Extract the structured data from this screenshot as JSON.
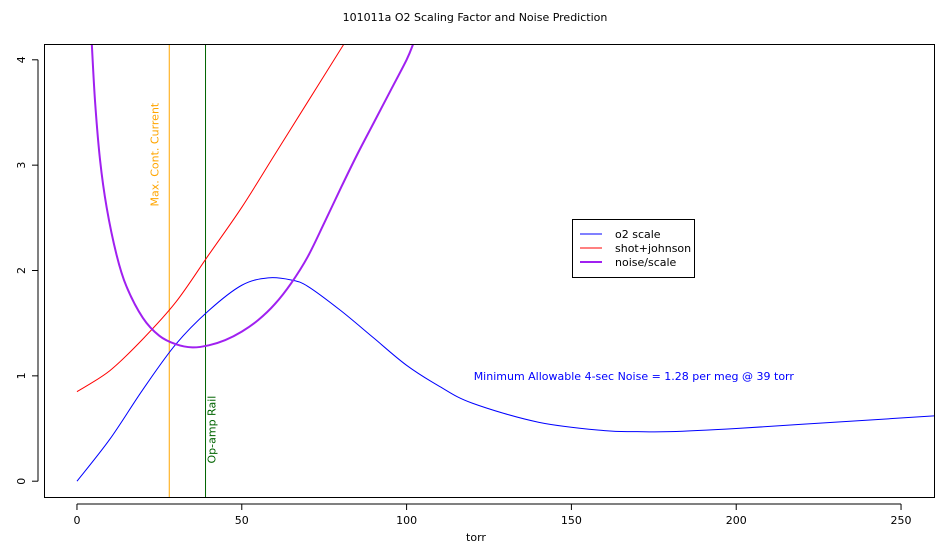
{
  "chart_data": {
    "type": "line",
    "title": "101011a  O2 Scaling Factor and Noise Prediction",
    "xlabel": "torr",
    "ylabel": "",
    "xlim": [
      -10,
      260
    ],
    "ylim": [
      -0.15,
      4.15
    ],
    "x_ticks": [
      0,
      50,
      100,
      150,
      200,
      250
    ],
    "y_ticks": [
      0,
      1,
      2,
      3,
      4
    ],
    "legend_position": "center-right",
    "series": [
      {
        "name": "o2 scale",
        "color": "#0000ff",
        "line_width": 1,
        "x": [
          0,
          10,
          20,
          30,
          40,
          50,
          58,
          65,
          70,
          80,
          90,
          100,
          110,
          120,
          140,
          160,
          170,
          180,
          200,
          220,
          240,
          260
        ],
        "y": [
          0.0,
          0.4,
          0.87,
          1.3,
          1.62,
          1.86,
          1.93,
          1.91,
          1.85,
          1.62,
          1.36,
          1.1,
          0.9,
          0.74,
          0.56,
          0.48,
          0.47,
          0.47,
          0.5,
          0.54,
          0.58,
          0.62
        ]
      },
      {
        "name": "shot+johnson",
        "color": "#ff0000",
        "line_width": 1,
        "x": [
          0,
          10,
          20,
          30,
          40,
          50,
          60,
          70,
          80,
          81
        ],
        "y": [
          0.85,
          1.05,
          1.35,
          1.7,
          2.15,
          2.6,
          3.1,
          3.6,
          4.1,
          4.15
        ]
      },
      {
        "name": "noise/scale",
        "color": "#a020f0",
        "line_width": 2,
        "x": [
          4.5,
          5.5,
          7,
          9,
          12,
          15,
          20,
          25,
          30,
          35,
          40,
          45,
          50,
          55,
          60,
          65,
          70,
          75,
          80,
          85,
          90,
          95,
          100,
          102
        ],
        "y": [
          4.15,
          3.6,
          3.05,
          2.6,
          2.15,
          1.85,
          1.55,
          1.38,
          1.3,
          1.27,
          1.29,
          1.34,
          1.42,
          1.53,
          1.68,
          1.88,
          2.13,
          2.45,
          2.78,
          3.1,
          3.4,
          3.7,
          4.0,
          4.15
        ]
      }
    ],
    "vertical_lines": [
      {
        "x": 28,
        "color": "#ffa500",
        "label": "Max. Cont. Current"
      },
      {
        "x": 39,
        "color": "#006400",
        "label": "Op-amp Rail"
      }
    ],
    "annotation": {
      "text": "Minimum Allowable 4-sec Noise =  1.28  per meg @  39  torr",
      "x": 175,
      "y": 1.0,
      "color": "#0000ff"
    }
  }
}
